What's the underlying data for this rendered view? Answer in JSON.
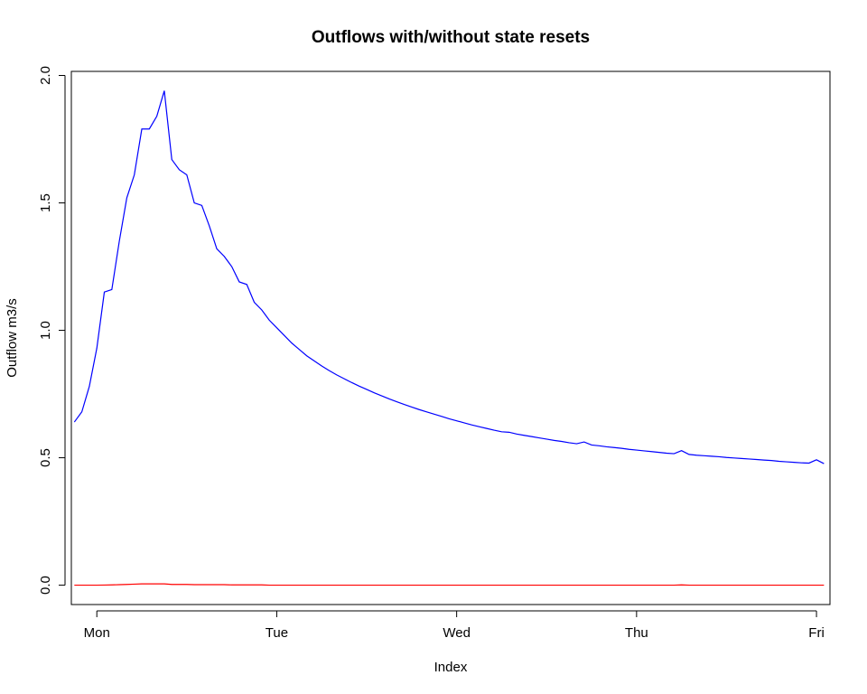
{
  "chart_data": {
    "type": "line",
    "title": "Outflows with/without state resets",
    "xlabel": "Index",
    "ylabel": "Outflow m3/s",
    "x_tick_labels": [
      "Mon",
      "Tue",
      "Wed",
      "Thu",
      "Fri"
    ],
    "x_tick_positions": [
      0,
      24,
      48,
      72,
      96
    ],
    "xlim": [
      -3.4,
      97.8
    ],
    "ylim": [
      -0.076,
      2.016
    ],
    "y_ticks": [
      0.0,
      0.5,
      1.0,
      1.5,
      2.0
    ],
    "y_tick_labels": [
      "0.0",
      "0.5",
      "1.0",
      "1.5",
      "2.0"
    ],
    "x_start": -3,
    "x_step": 1,
    "grid": false,
    "series": [
      {
        "color": "#0000ff",
        "values": [
          0.64,
          0.68,
          0.78,
          0.93,
          1.15,
          1.16,
          1.35,
          1.52,
          1.61,
          1.79,
          1.79,
          1.84,
          1.94,
          1.67,
          1.63,
          1.61,
          1.5,
          1.49,
          1.41,
          1.32,
          1.29,
          1.25,
          1.19,
          1.18,
          1.11,
          1.08,
          1.04,
          1.01,
          0.98,
          0.95,
          0.925,
          0.9,
          0.88,
          0.86,
          0.842,
          0.825,
          0.81,
          0.795,
          0.781,
          0.768,
          0.755,
          0.743,
          0.731,
          0.72,
          0.709,
          0.699,
          0.689,
          0.68,
          0.671,
          0.662,
          0.653,
          0.645,
          0.637,
          0.629,
          0.622,
          0.615,
          0.608,
          0.602,
          0.6,
          0.593,
          0.588,
          0.583,
          0.578,
          0.573,
          0.568,
          0.564,
          0.559,
          0.555,
          0.562,
          0.55,
          0.547,
          0.543,
          0.54,
          0.537,
          0.533,
          0.53,
          0.527,
          0.524,
          0.521,
          0.518,
          0.516,
          0.528,
          0.513,
          0.51,
          0.508,
          0.506,
          0.504,
          0.501,
          0.499,
          0.497,
          0.495,
          0.493,
          0.491,
          0.489,
          0.486,
          0.484,
          0.482,
          0.48,
          0.479,
          0.492,
          0.477
        ]
      },
      {
        "color": "#ff0000",
        "values": [
          0.0,
          0.0,
          0.0,
          0.0,
          0.0005,
          0.001,
          0.002,
          0.003,
          0.004,
          0.005,
          0.005,
          0.005,
          0.005,
          0.003,
          0.003,
          0.003,
          0.002,
          0.002,
          0.002,
          0.002,
          0.002,
          0.001,
          0.001,
          0.001,
          0.001,
          0.001,
          0.0,
          0.0,
          0.0,
          0.0,
          0.0,
          0.0,
          0.0,
          0.0,
          0.0,
          0.0,
          0.0,
          0.0,
          0.0,
          0.0,
          0.0,
          0.0,
          0.0,
          0.0,
          0.0,
          0.0,
          0.0,
          0.0,
          0.0,
          0.0,
          0.0,
          0.0,
          0.0,
          0.0,
          0.0,
          0.0,
          0.0,
          0.0,
          0.0,
          0.0,
          0.0,
          0.0,
          0.0,
          0.0,
          0.0,
          0.0,
          0.0,
          0.0,
          0.0,
          0.0,
          0.0,
          0.0,
          0.0,
          0.0,
          0.0,
          0.0,
          0.0,
          0.0,
          0.0,
          0.0,
          0.0,
          0.001,
          0.0,
          0.0,
          0.0,
          0.0,
          0.0,
          0.0,
          0.0,
          0.0,
          0.0,
          0.0,
          0.0,
          0.0,
          0.0,
          0.0,
          0.0,
          0.0,
          0.0,
          0.0,
          0.0
        ]
      }
    ]
  }
}
